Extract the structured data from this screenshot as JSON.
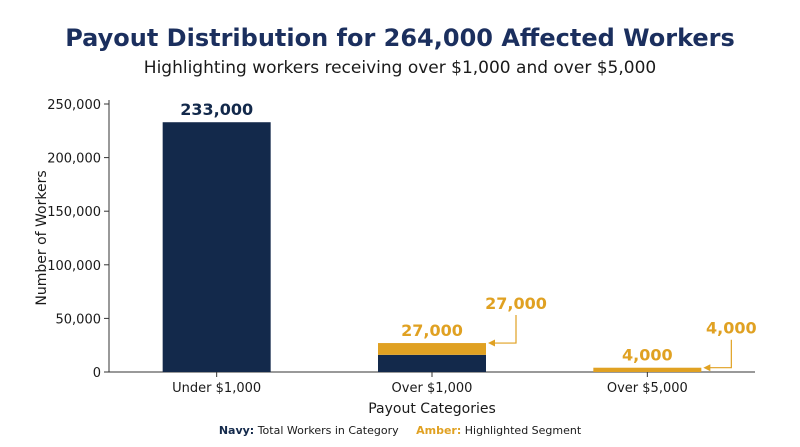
{
  "chart_data": {
    "type": "bar",
    "title": "Payout Distribution for 264,000 Affected Workers",
    "subtitle": "Highlighting workers receiving over $1,000 and over $5,000",
    "xlabel": "Payout Categories",
    "ylabel": "Number of Workers",
    "ylim": [
      0,
      250000
    ],
    "yticks": [
      "0",
      "50,000",
      "100,000",
      "150,000",
      "200,000",
      "250,000"
    ],
    "ytick_values": [
      0,
      50000,
      100000,
      150000,
      200000,
      250000
    ],
    "categories": [
      "Under $1,000",
      "Over $1,000",
      "Over $5,000"
    ],
    "series": [
      {
        "name": "Total Workers in Category",
        "values": [
          233000,
          16000,
          0
        ],
        "color": "#13294b"
      },
      {
        "name": "Highlighted Segment",
        "values": [
          0,
          11000,
          4000
        ],
        "color": "#e0a122"
      }
    ],
    "bar_labels": [
      "233,000",
      "27,000",
      "4,000"
    ],
    "bar_totals": [
      233000,
      27000,
      4000
    ],
    "bar_label_colors": [
      "#13294b",
      "#e0a122",
      "#e0a122"
    ],
    "annotations": [
      {
        "text": "27,000",
        "category": "Over $1,000",
        "value": 27000,
        "color": "#e0a122"
      },
      {
        "text": "4,000",
        "category": "Over $5,000",
        "value": 4000,
        "color": "#e0a122"
      }
    ],
    "legend": {
      "position": "bottom",
      "items": [
        {
          "key": "Navy:",
          "label": "Total Workers in Category",
          "color": "#13294b"
        },
        {
          "key": "Amber:",
          "label": "Highlighted Segment",
          "color": "#e0a122"
        }
      ]
    },
    "grid": false
  }
}
